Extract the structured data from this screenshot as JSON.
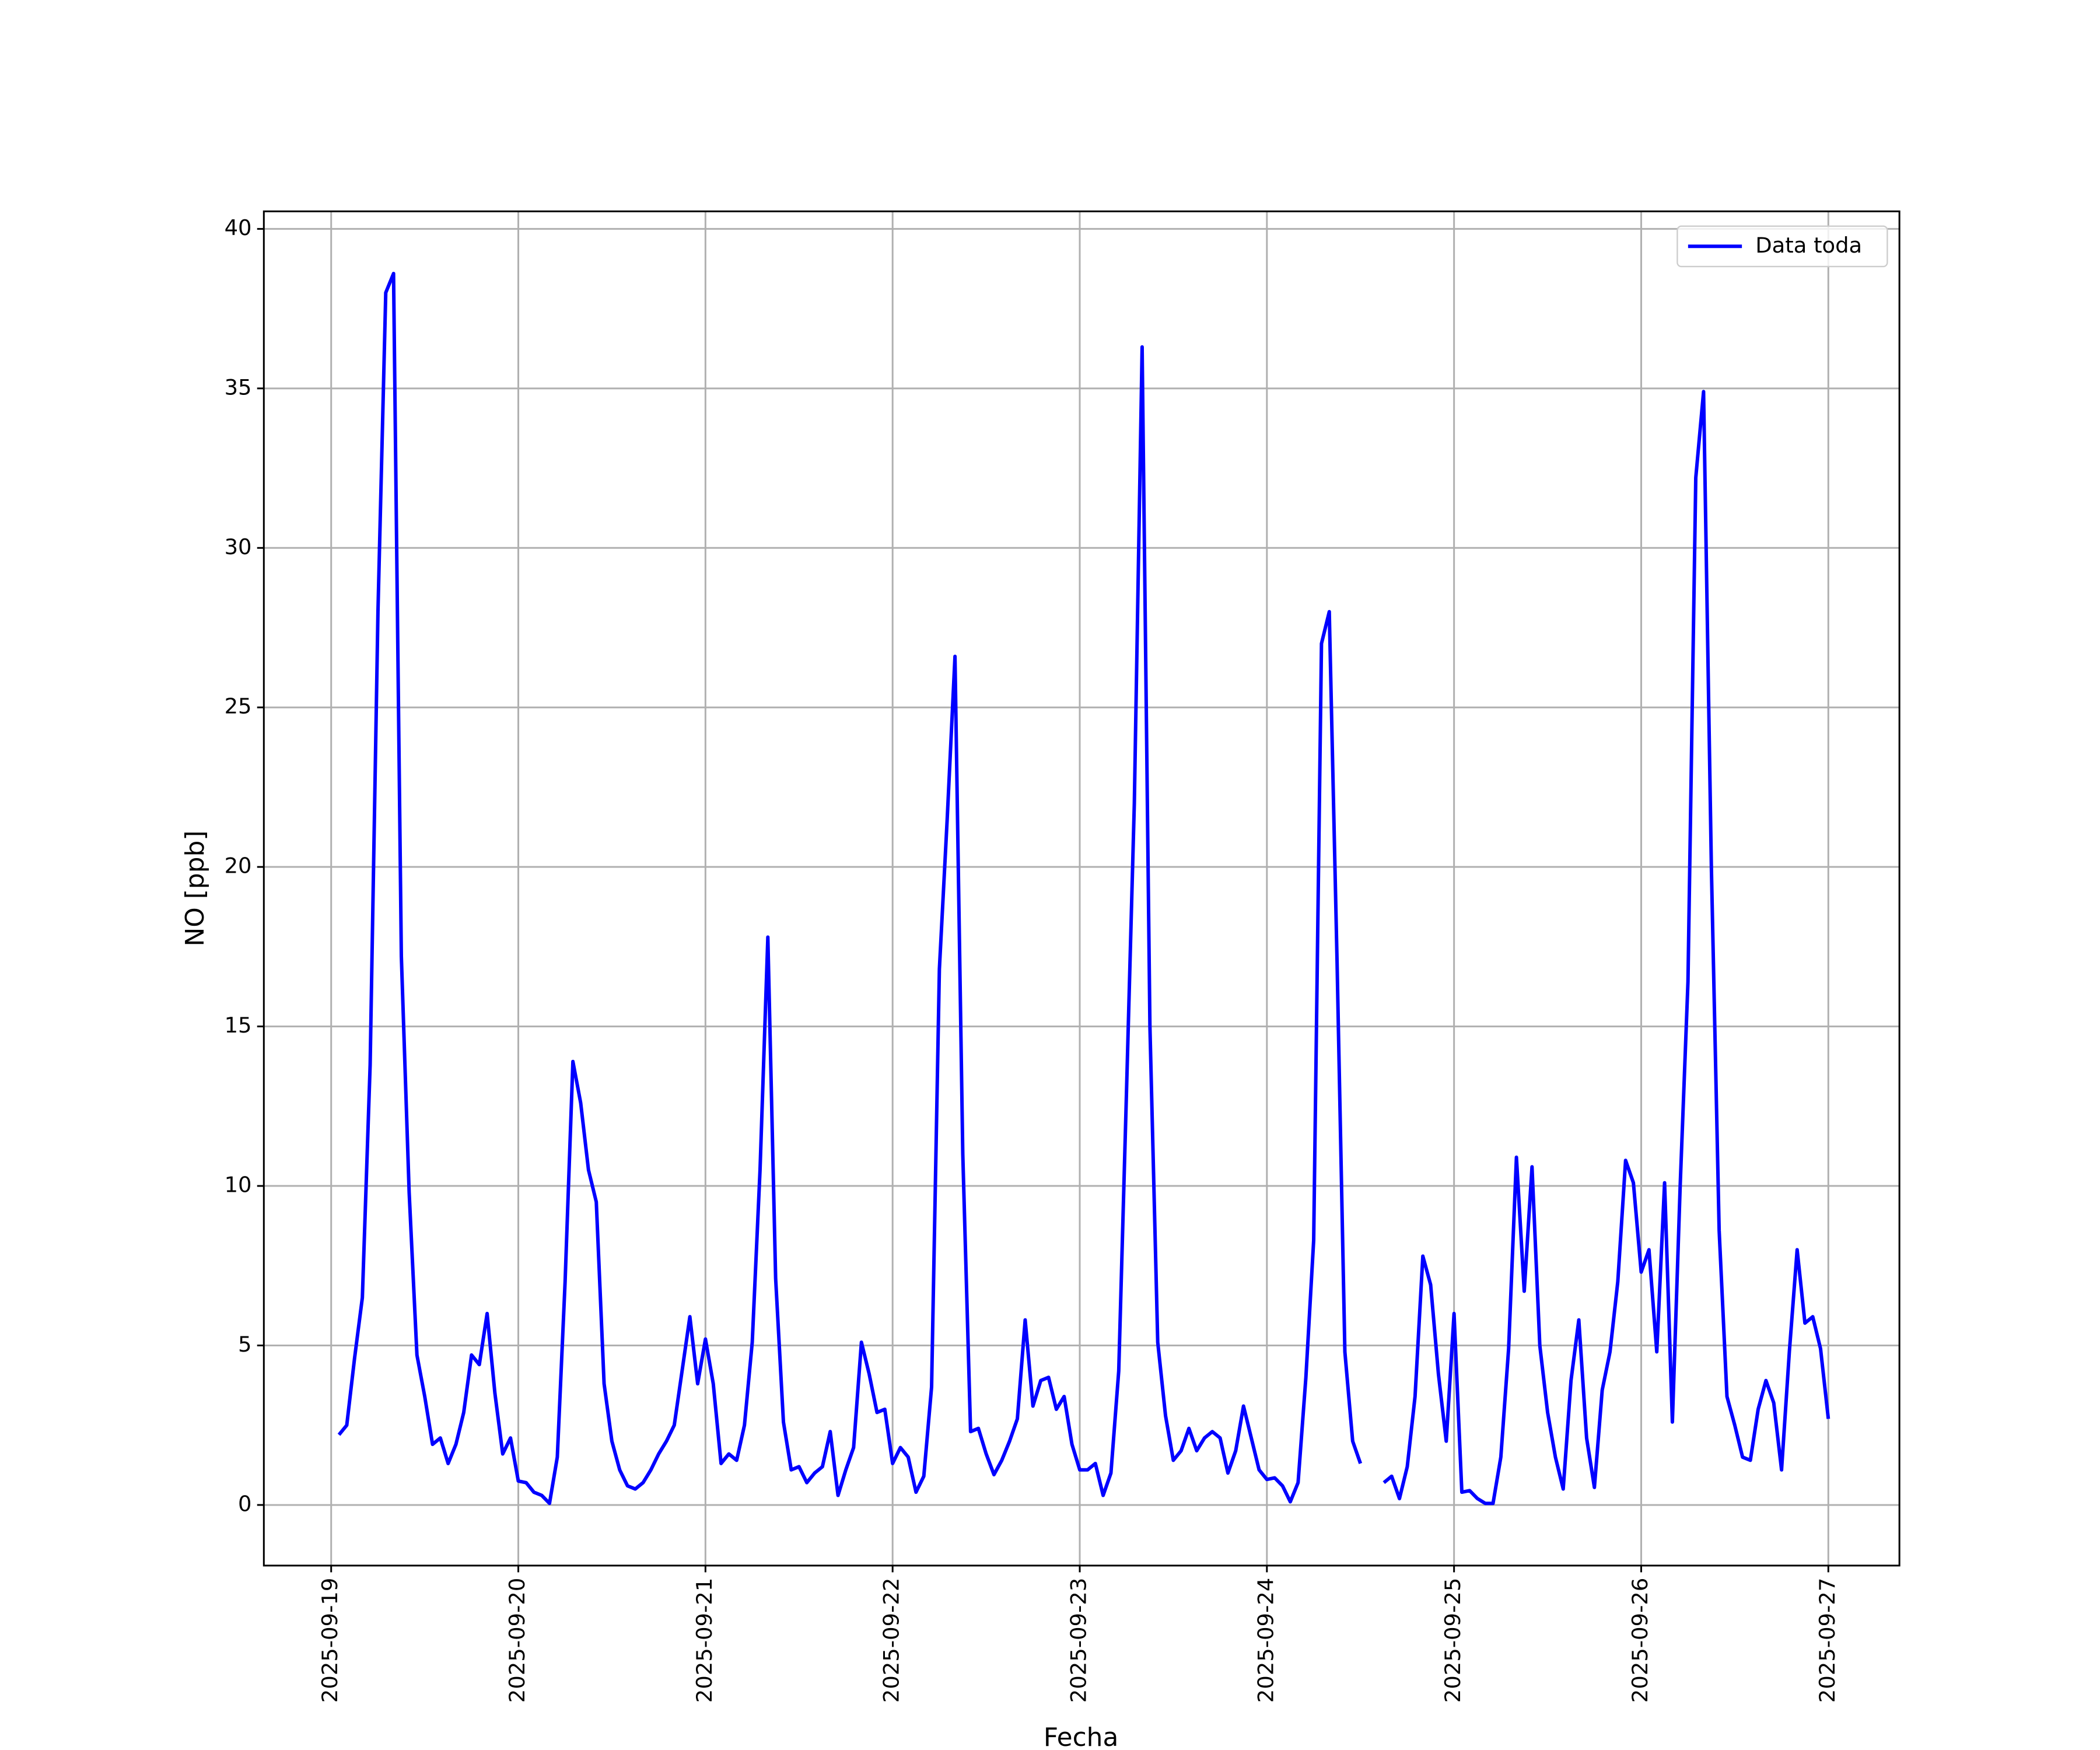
{
  "chart_data": {
    "type": "line",
    "xlabel": "Fecha",
    "ylabel": "NO [ppb]",
    "xlim": [
      "2025-09-18 15:22",
      "2025-09-27 09:07"
    ],
    "xticks": [
      "2025-09-19",
      "2025-09-20",
      "2025-09-21",
      "2025-09-22",
      "2025-09-23",
      "2025-09-24",
      "2025-09-25",
      "2025-09-26",
      "2025-09-27"
    ],
    "ylim": [
      -1.9,
      40.55
    ],
    "yticks": [
      0,
      5,
      10,
      15,
      20,
      25,
      30,
      35,
      40
    ],
    "grid": true,
    "legend": "upper right",
    "x": [
      "2025-09-19 01:00",
      "2025-09-19 02:00",
      "2025-09-19 03:00",
      "2025-09-19 04:00",
      "2025-09-19 05:00",
      "2025-09-19 06:00",
      "2025-09-19 07:00",
      "2025-09-19 08:00",
      "2025-09-19 09:00",
      "2025-09-19 10:00",
      "2025-09-19 11:00",
      "2025-09-19 12:00",
      "2025-09-19 13:00",
      "2025-09-19 14:00",
      "2025-09-19 15:00",
      "2025-09-19 16:00",
      "2025-09-19 17:00",
      "2025-09-19 18:00",
      "2025-09-19 19:00",
      "2025-09-19 20:00",
      "2025-09-19 21:00",
      "2025-09-19 22:00",
      "2025-09-19 23:00",
      "2025-09-20 00:00",
      "2025-09-20 01:00",
      "2025-09-20 02:00",
      "2025-09-20 03:00",
      "2025-09-20 04:00",
      "2025-09-20 05:00",
      "2025-09-20 06:00",
      "2025-09-20 07:00",
      "2025-09-20 08:00",
      "2025-09-20 09:00",
      "2025-09-20 10:00",
      "2025-09-20 11:00",
      "2025-09-20 12:00",
      "2025-09-20 13:00",
      "2025-09-20 14:00",
      "2025-09-20 15:00",
      "2025-09-20 16:00",
      "2025-09-20 17:00",
      "2025-09-20 18:00",
      "2025-09-20 19:00",
      "2025-09-20 20:00",
      "2025-09-20 21:00",
      "2025-09-20 22:00",
      "2025-09-20 23:00",
      "2025-09-21 00:00",
      "2025-09-21 01:00",
      "2025-09-21 02:00",
      "2025-09-21 03:00",
      "2025-09-21 04:00",
      "2025-09-21 05:00",
      "2025-09-21 06:00",
      "2025-09-21 07:00",
      "2025-09-21 08:00",
      "2025-09-21 09:00",
      "2025-09-21 10:00",
      "2025-09-21 11:00",
      "2025-09-21 12:00",
      "2025-09-21 13:00",
      "2025-09-21 14:00",
      "2025-09-21 15:00",
      "2025-09-21 16:00",
      "2025-09-21 17:00",
      "2025-09-21 18:00",
      "2025-09-21 19:00",
      "2025-09-21 20:00",
      "2025-09-21 21:00",
      "2025-09-21 22:00",
      "2025-09-21 23:00",
      "2025-09-22 00:00",
      "2025-09-22 01:00",
      "2025-09-22 02:00",
      "2025-09-22 03:00",
      "2025-09-22 04:00",
      "2025-09-22 05:00",
      "2025-09-22 06:00",
      "2025-09-22 07:00",
      "2025-09-22 08:00",
      "2025-09-22 09:00",
      "2025-09-22 10:00",
      "2025-09-22 11:00",
      "2025-09-22 12:00",
      "2025-09-22 13:00",
      "2025-09-22 14:00",
      "2025-09-22 15:00",
      "2025-09-22 16:00",
      "2025-09-22 17:00",
      "2025-09-22 18:00",
      "2025-09-22 19:00",
      "2025-09-22 20:00",
      "2025-09-22 21:00",
      "2025-09-22 22:00",
      "2025-09-22 23:00",
      "2025-09-23 00:00",
      "2025-09-23 01:00",
      "2025-09-23 02:00",
      "2025-09-23 03:00",
      "2025-09-23 04:00",
      "2025-09-23 05:00",
      "2025-09-23 06:00",
      "2025-09-23 07:00",
      "2025-09-23 08:00",
      "2025-09-23 09:00",
      "2025-09-23 10:00",
      "2025-09-23 11:00",
      "2025-09-23 12:00",
      "2025-09-23 13:00",
      "2025-09-23 14:00",
      "2025-09-23 15:00",
      "2025-09-23 16:00",
      "2025-09-23 17:00",
      "2025-09-23 18:00",
      "2025-09-23 19:00",
      "2025-09-23 20:00",
      "2025-09-23 21:00",
      "2025-09-23 22:00",
      "2025-09-23 23:00",
      "2025-09-24 00:00",
      "2025-09-24 01:00",
      "2025-09-24 02:00",
      "2025-09-24 03:00",
      "2025-09-24 04:00",
      "2025-09-24 05:00",
      "2025-09-24 06:00",
      "2025-09-24 07:00",
      "2025-09-24 08:00",
      "2025-09-24 09:00",
      "2025-09-24 10:00",
      "2025-09-24 11:00",
      "2025-09-24 12:00",
      "2025-09-24 13:00",
      "2025-09-24 14:00",
      "2025-09-24 15:00",
      "2025-09-24 16:00",
      "2025-09-24 17:00",
      "2025-09-24 18:00",
      "2025-09-24 19:00",
      "2025-09-24 20:00",
      "2025-09-24 21:00",
      "2025-09-24 22:00",
      "2025-09-24 23:00",
      "2025-09-25 00:00",
      "2025-09-25 01:00",
      "2025-09-25 02:00",
      "2025-09-25 03:00",
      "2025-09-25 04:00",
      "2025-09-25 05:00",
      "2025-09-25 06:00",
      "2025-09-25 07:00",
      "2025-09-25 08:00",
      "2025-09-25 09:00",
      "2025-09-25 10:00",
      "2025-09-25 11:00",
      "2025-09-25 12:00",
      "2025-09-25 13:00",
      "2025-09-25 14:00",
      "2025-09-25 15:00",
      "2025-09-25 16:00",
      "2025-09-25 17:00",
      "2025-09-25 18:00",
      "2025-09-25 19:00",
      "2025-09-25 20:00",
      "2025-09-25 21:00",
      "2025-09-25 22:00",
      "2025-09-25 23:00",
      "2025-09-26 00:00",
      "2025-09-26 01:00",
      "2025-09-26 02:00",
      "2025-09-26 03:00",
      "2025-09-26 04:00",
      "2025-09-26 05:00",
      "2025-09-26 06:00",
      "2025-09-26 07:00",
      "2025-09-26 08:00",
      "2025-09-26 09:00",
      "2025-09-26 10:00",
      "2025-09-26 11:00",
      "2025-09-26 12:00",
      "2025-09-26 13:00",
      "2025-09-26 14:00",
      "2025-09-26 15:00",
      "2025-09-26 16:00",
      "2025-09-26 17:00",
      "2025-09-26 18:00",
      "2025-09-26 19:00",
      "2025-09-26 20:00",
      "2025-09-26 21:00",
      "2025-09-26 22:00",
      "2025-09-26 23:00",
      "2025-09-27 00:00"
    ],
    "series": [
      {
        "name": "Data toda",
        "color": "#0000ff",
        "values": [
          2.2,
          2.5,
          4.6,
          6.5,
          13.8,
          28,
          38,
          38.6,
          17.2,
          9.8,
          4.7,
          3.4,
          1.9,
          2.1,
          1.3,
          1.9,
          2.9,
          4.7,
          4.4,
          6.0,
          3.5,
          1.6,
          2.1,
          0.75,
          0.7,
          0.4,
          0.3,
          0.05,
          1.5,
          7,
          13.9,
          12.6,
          10.5,
          9.5,
          3.8,
          2.0,
          1.1,
          0.6,
          0.5,
          0.7,
          1.1,
          1.6,
          2.0,
          2.5,
          4.2,
          5.9,
          3.8,
          5.2,
          3.8,
          1.3,
          1.6,
          1.4,
          2.5,
          5.1,
          10.5,
          17.8,
          7.1,
          2.6,
          1.1,
          1.2,
          0.7,
          1.0,
          1.2,
          2.3,
          0.3,
          1.1,
          1.8,
          5.1,
          4.1,
          2.9,
          3.0,
          1.3,
          1.8,
          1.5,
          0.4,
          0.9,
          3.7,
          16.8,
          21.5,
          26.6,
          11,
          2.3,
          2.4,
          1.6,
          0.95,
          1.4,
          2.0,
          2.7,
          5.8,
          3.1,
          3.9,
          4.0,
          3.0,
          3.4,
          1.9,
          1.1,
          1.1,
          1.3,
          0.3,
          1.0,
          4.2,
          13,
          22,
          36.3,
          15,
          5.1,
          2.8,
          1.4,
          1.7,
          2.4,
          1.7,
          2.1,
          2.3,
          2.1,
          1.0,
          1.7,
          3.1,
          2.1,
          1.1,
          0.8,
          0.85,
          0.6,
          0.1,
          0.7,
          4.0,
          8.3,
          27,
          28,
          17,
          4.8,
          2.0,
          1.3,
          null,
          null,
          0.7,
          0.9,
          0.2,
          1.2,
          3.4,
          7.8,
          6.9,
          4.1,
          2.0,
          6.0,
          0.4,
          0.45,
          0.2,
          0.05,
          0.05,
          1.5,
          4.9,
          10.9,
          6.7,
          10.6,
          5.0,
          2.9,
          1.5,
          0.5,
          3.9,
          5.8,
          2.1,
          0.55,
          3.6,
          4.8,
          7.0,
          10.8,
          10.1,
          7.3,
          8.0,
          4.8,
          10.1,
          2.6,
          10,
          16.4,
          32.2,
          34.9,
          20,
          8.6,
          3.4,
          2.5,
          1.5,
          1.4,
          3.0,
          3.9,
          3.2,
          1.1,
          4.8,
          8.0,
          5.7,
          5.9,
          4.9,
          2.7
        ]
      }
    ]
  }
}
